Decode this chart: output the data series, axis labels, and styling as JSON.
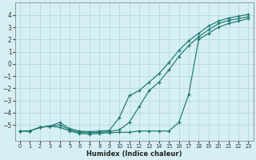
{
  "xlabel": "Humidex (Indice chaleur)",
  "xlim": [
    -0.5,
    23.5
  ],
  "ylim": [
    -6.3,
    5.0
  ],
  "background_color": "#d6eff5",
  "grid_color": "#b8dde5",
  "line_color": "#1a7a6e",
  "x_ticks": [
    0,
    1,
    2,
    3,
    4,
    5,
    6,
    7,
    8,
    9,
    10,
    11,
    12,
    13,
    14,
    15,
    16,
    17,
    18,
    19,
    20,
    21,
    22,
    23
  ],
  "y_ticks": [
    -5,
    -4,
    -3,
    -2,
    -1,
    0,
    1,
    2,
    3,
    4
  ],
  "line1_x": [
    0,
    1,
    2,
    3,
    4,
    5,
    6,
    7,
    8,
    9,
    10,
    11,
    12,
    13,
    14,
    15,
    16,
    17,
    18,
    19,
    20,
    21,
    22,
    23
  ],
  "line1_y": [
    -5.5,
    -5.5,
    -5.2,
    -5.1,
    -4.8,
    -5.3,
    -5.5,
    -5.55,
    -5.5,
    -5.45,
    -4.4,
    -2.6,
    -2.2,
    -1.5,
    -0.8,
    0.1,
    1.1,
    1.9,
    2.5,
    3.1,
    3.5,
    3.75,
    3.9,
    4.05
  ],
  "line2_x": [
    0,
    1,
    2,
    3,
    4,
    5,
    6,
    7,
    8,
    9,
    10,
    11,
    12,
    13,
    14,
    15,
    16,
    17,
    18,
    19,
    20,
    21,
    22,
    23
  ],
  "line2_y": [
    -5.5,
    -5.5,
    -5.2,
    -5.1,
    -5.0,
    -5.4,
    -5.6,
    -5.65,
    -5.6,
    -5.55,
    -5.4,
    -4.8,
    -3.5,
    -2.2,
    -1.5,
    -0.5,
    0.6,
    1.5,
    2.2,
    2.8,
    3.3,
    3.55,
    3.7,
    3.85
  ],
  "line3_x": [
    0,
    1,
    2,
    3,
    4,
    5,
    6,
    7,
    8,
    9,
    10,
    11,
    12,
    13,
    14,
    15,
    16,
    17,
    18,
    19,
    20,
    21,
    22,
    23
  ],
  "line3_y": [
    -5.5,
    -5.5,
    -5.2,
    -5.1,
    -5.2,
    -5.5,
    -5.7,
    -5.75,
    -5.7,
    -5.65,
    -5.6,
    -5.6,
    -5.5,
    -5.5,
    -5.5,
    -5.5,
    -4.8,
    -2.5,
    2.0,
    2.5,
    3.0,
    3.3,
    3.5,
    3.7
  ]
}
